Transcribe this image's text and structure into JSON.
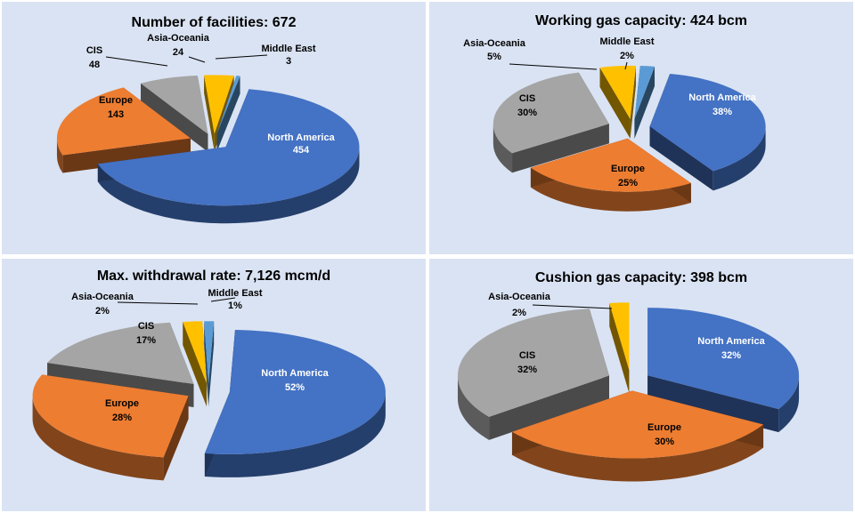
{
  "colors": {
    "North America": "#4472c4",
    "Europe": "#ed7d31",
    "CIS": "#a5a5a5",
    "Asia-Oceania": "#ffc000",
    "Middle East": "#5b9bd5",
    "background": "#dae3f3"
  },
  "chart_data": [
    {
      "type": "pie",
      "title": "Number of facilities: 672",
      "label_format": "value",
      "slices": [
        {
          "label": "North America",
          "value": 454,
          "display": "454",
          "outside": false
        },
        {
          "label": "Europe",
          "value": 143,
          "display": "143",
          "outside": false
        },
        {
          "label": "CIS",
          "value": 48,
          "display": "48",
          "outside": true
        },
        {
          "label": "Asia-Oceania",
          "value": 24,
          "display": "24",
          "outside": true
        },
        {
          "label": "Middle East",
          "value": 3,
          "display": "3",
          "outside": true
        }
      ]
    },
    {
      "type": "pie",
      "title": "Working gas capacity: 424 bcm",
      "label_format": "percent",
      "slices": [
        {
          "label": "North America",
          "value": 38,
          "display": "38%",
          "outside": false
        },
        {
          "label": "Europe",
          "value": 25,
          "display": "25%",
          "outside": false
        },
        {
          "label": "CIS",
          "value": 30,
          "display": "30%",
          "outside": false
        },
        {
          "label": "Asia-Oceania",
          "value": 5,
          "display": "5%",
          "outside": true
        },
        {
          "label": "Middle East",
          "value": 2,
          "display": "2%",
          "outside": true
        }
      ]
    },
    {
      "type": "pie",
      "title": "Max. withdrawal rate: 7,126 mcm/d",
      "label_format": "percent",
      "slices": [
        {
          "label": "North America",
          "value": 52,
          "display": "52%",
          "outside": false
        },
        {
          "label": "Europe",
          "value": 28,
          "display": "28%",
          "outside": false
        },
        {
          "label": "CIS",
          "value": 17,
          "display": "17%",
          "outside": false
        },
        {
          "label": "Asia-Oceania",
          "value": 2,
          "display": "2%",
          "outside": true
        },
        {
          "label": "Middle East",
          "value": 1,
          "display": "1%",
          "outside": true
        }
      ]
    },
    {
      "type": "pie",
      "title": "Cushion gas capacity: 398 bcm",
      "label_format": "percent",
      "slices": [
        {
          "label": "North America",
          "value": 32,
          "display": "32%",
          "outside": false
        },
        {
          "label": "Europe",
          "value": 30,
          "display": "30%",
          "outside": false
        },
        {
          "label": "CIS",
          "value": 32,
          "display": "32%",
          "outside": false
        },
        {
          "label": "Asia-Oceania",
          "value": 2,
          "display": "2%",
          "outside": true
        }
      ]
    }
  ]
}
